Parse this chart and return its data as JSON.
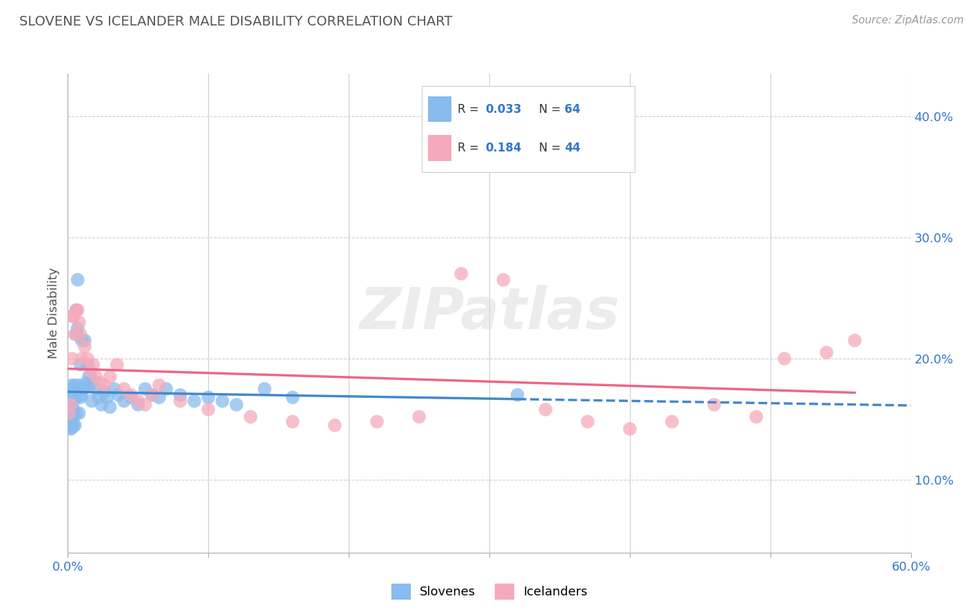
{
  "title": "SLOVENE VS ICELANDER MALE DISABILITY CORRELATION CHART",
  "source_text": "Source: ZipAtlas.com",
  "ylabel": "Male Disability",
  "xlim": [
    0.0,
    0.6
  ],
  "ylim": [
    0.04,
    0.435
  ],
  "xticks": [
    0.0,
    0.1,
    0.2,
    0.3,
    0.4,
    0.5,
    0.6
  ],
  "yticks_right": [
    0.1,
    0.2,
    0.3,
    0.4
  ],
  "ytick_labels_right": [
    "10.0%",
    "20.0%",
    "30.0%",
    "40.0%"
  ],
  "R_slovene": 0.033,
  "N_slovene": 64,
  "R_icelander": 0.184,
  "N_icelander": 44,
  "slovene_color": "#88BBEE",
  "icelander_color": "#F5AABB",
  "slovene_line_color": "#4488CC",
  "icelander_line_color": "#EE6688",
  "background_color": "#FFFFFF",
  "grid_color": "#CCCCCC",
  "title_color": "#555555",
  "legend_R_N_color": "#3377CC",
  "slovene_x": [
    0.001,
    0.001,
    0.001,
    0.001,
    0.002,
    0.002,
    0.002,
    0.002,
    0.002,
    0.003,
    0.003,
    0.003,
    0.003,
    0.003,
    0.004,
    0.004,
    0.004,
    0.004,
    0.004,
    0.005,
    0.005,
    0.005,
    0.006,
    0.006,
    0.006,
    0.007,
    0.007,
    0.008,
    0.008,
    0.009,
    0.009,
    0.01,
    0.01,
    0.011,
    0.012,
    0.013,
    0.014,
    0.015,
    0.016,
    0.017,
    0.018,
    0.02,
    0.022,
    0.024,
    0.026,
    0.028,
    0.03,
    0.033,
    0.036,
    0.04,
    0.045,
    0.05,
    0.055,
    0.06,
    0.065,
    0.07,
    0.08,
    0.09,
    0.1,
    0.11,
    0.12,
    0.14,
    0.16,
    0.32
  ],
  "slovene_y": [
    0.165,
    0.155,
    0.15,
    0.145,
    0.17,
    0.16,
    0.155,
    0.148,
    0.142,
    0.178,
    0.168,
    0.158,
    0.15,
    0.143,
    0.175,
    0.165,
    0.158,
    0.152,
    0.145,
    0.178,
    0.168,
    0.145,
    0.24,
    0.22,
    0.155,
    0.265,
    0.225,
    0.178,
    0.155,
    0.195,
    0.168,
    0.215,
    0.17,
    0.175,
    0.215,
    0.18,
    0.195,
    0.185,
    0.178,
    0.165,
    0.182,
    0.175,
    0.168,
    0.162,
    0.172,
    0.168,
    0.16,
    0.175,
    0.17,
    0.165,
    0.168,
    0.162,
    0.175,
    0.17,
    0.168,
    0.175,
    0.17,
    0.165,
    0.168,
    0.165,
    0.162,
    0.175,
    0.168,
    0.17
  ],
  "icelander_x": [
    0.001,
    0.002,
    0.003,
    0.003,
    0.004,
    0.005,
    0.006,
    0.007,
    0.008,
    0.009,
    0.01,
    0.012,
    0.014,
    0.016,
    0.018,
    0.02,
    0.023,
    0.026,
    0.03,
    0.035,
    0.04,
    0.045,
    0.05,
    0.055,
    0.06,
    0.065,
    0.08,
    0.1,
    0.13,
    0.16,
    0.19,
    0.22,
    0.25,
    0.28,
    0.31,
    0.34,
    0.37,
    0.4,
    0.43,
    0.46,
    0.49,
    0.51,
    0.54,
    0.56
  ],
  "icelander_y": [
    0.155,
    0.162,
    0.235,
    0.2,
    0.235,
    0.22,
    0.24,
    0.24,
    0.23,
    0.22,
    0.2,
    0.21,
    0.2,
    0.19,
    0.195,
    0.185,
    0.18,
    0.178,
    0.185,
    0.195,
    0.175,
    0.17,
    0.165,
    0.162,
    0.17,
    0.178,
    0.165,
    0.158,
    0.152,
    0.148,
    0.145,
    0.148,
    0.152,
    0.27,
    0.265,
    0.158,
    0.148,
    0.142,
    0.148,
    0.162,
    0.152,
    0.2,
    0.205,
    0.215
  ]
}
